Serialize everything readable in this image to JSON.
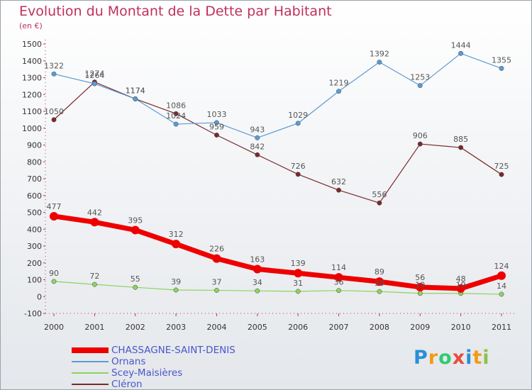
{
  "header": {
    "title": "Evolution du Montant de la Dette par Habitant",
    "unit": "(en €)"
  },
  "logo": {
    "text": "Proxiti",
    "letter_colors": [
      "#2a8fd6",
      "#f39c12",
      "#2ecc71",
      "#e74c3c",
      "#2a8fd6",
      "#f39c12",
      "#8bc34a"
    ]
  },
  "chart_data": {
    "type": "line",
    "title": "Evolution du Montant de la Dette par Habitant",
    "subtitle": "(en €)",
    "xlabel": "",
    "ylabel": "",
    "categories": [
      "2000",
      "2001",
      "2002",
      "2003",
      "2004",
      "2005",
      "2006",
      "2007",
      "2008",
      "2009",
      "2010",
      "2011"
    ],
    "ylim": [
      -100,
      1500
    ],
    "yticks": [
      -100,
      0,
      100,
      200,
      300,
      400,
      500,
      600,
      700,
      800,
      900,
      1000,
      1100,
      1200,
      1300,
      1400,
      1500
    ],
    "grid": false,
    "legend_position": "bottom-left",
    "series": [
      {
        "name": "CHASSAGNE-SAINT-DENIS",
        "color": "#ee0000",
        "values": [
          477,
          442,
          395,
          312,
          226,
          163,
          139,
          114,
          89,
          56,
          48,
          124
        ],
        "labels": [
          "477",
          "442",
          "395",
          "312",
          "226",
          "163",
          "139",
          "114",
          "89",
          "56",
          "48",
          "124"
        ]
      },
      {
        "name": "Ornans",
        "color": "#5b9bd5",
        "values": [
          1322,
          1264,
          1174,
          1024,
          1033,
          943,
          1029,
          1219,
          1392,
          1253,
          1444,
          1355
        ],
        "labels": [
          "1322",
          "1264",
          "1174",
          "1024",
          "1033",
          "943",
          "1029",
          "1219",
          "1392",
          "1253",
          "1444",
          "1355"
        ]
      },
      {
        "name": "Scey-Maisières",
        "color": "#8dd35f",
        "values": [
          90,
          72,
          55,
          39,
          37,
          34,
          31,
          36,
          30,
          19,
          19,
          14
        ],
        "labels": [
          "90",
          "72",
          "55",
          "39",
          "37",
          "34",
          "31",
          "36",
          "30",
          "19",
          "19",
          "14"
        ]
      },
      {
        "name": "Cléron",
        "color": "#7a2a2a",
        "values": [
          1050,
          1274,
          1174,
          1086,
          959,
          842,
          726,
          632,
          556,
          906,
          885,
          725
        ],
        "labels": [
          "1050",
          "1274",
          "1174",
          "1086",
          "959",
          "842",
          "726",
          "632",
          "556",
          "906",
          "885",
          "725"
        ]
      }
    ]
  }
}
